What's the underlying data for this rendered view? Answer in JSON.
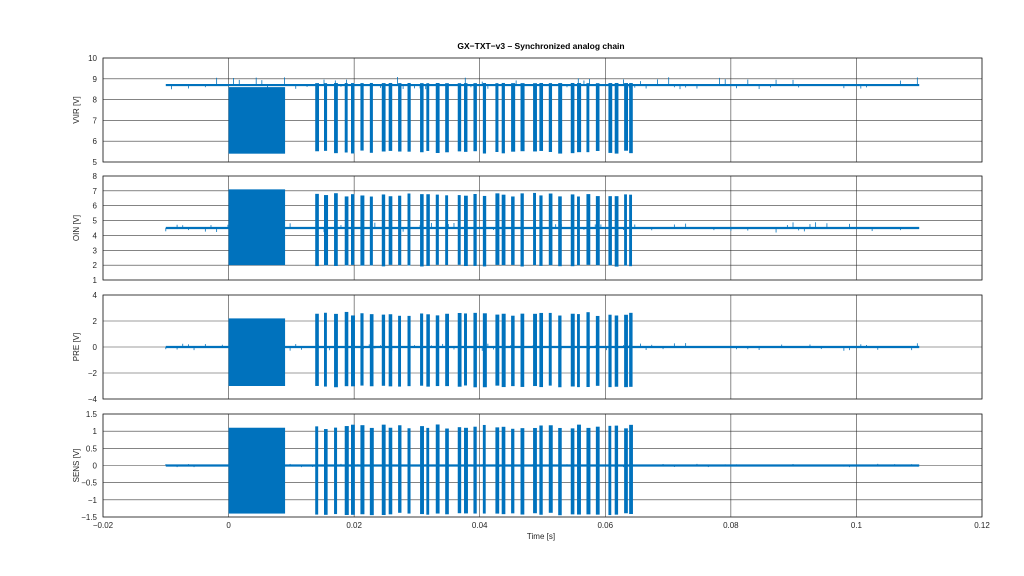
{
  "chart_data": {
    "type": "line",
    "title": "GX−TXT−v3 – Synchronized analog chain",
    "xlabel": "Time [s]",
    "xlim": [
      -0.02,
      0.12
    ],
    "xticks": [
      -0.02,
      0,
      0.02,
      0.04,
      0.06,
      0.08,
      0.1,
      0.12
    ],
    "xtick_labels": [
      "−0.02",
      "0",
      "0.02",
      "0.04",
      "0.06",
      "0.08",
      "0.1",
      "0.12"
    ],
    "grid": true,
    "color": "#0072bd",
    "signal_start": -0.01,
    "signal_end": 0.11,
    "dense_block": [
      0.0,
      0.009
    ],
    "burst_times": [
      0.0138,
      0.0152,
      0.0168,
      0.0185,
      0.0195,
      0.021,
      0.0225,
      0.0244,
      0.0255,
      0.027,
      0.0285,
      0.0305,
      0.0315,
      0.033,
      0.0345,
      0.0365,
      0.0375,
      0.039,
      0.0405,
      0.0425,
      0.0435,
      0.045,
      0.0465,
      0.0485,
      0.0495,
      0.051,
      0.0525,
      0.0545,
      0.0555,
      0.057,
      0.0585,
      0.0605,
      0.0615,
      0.063,
      0.0638
    ],
    "panels": [
      {
        "ylabel": "V\\IR [V]",
        "ylim": [
          5,
          10
        ],
        "yticks": [
          5,
          6,
          7,
          8,
          9,
          10
        ],
        "ytick_labels": [
          "5",
          "6",
          "7",
          "8",
          "9",
          "10"
        ],
        "baseline": 8.7,
        "block_low": 5.4,
        "block_high": 8.6,
        "burst_low": 5.4,
        "burst_high": 8.8,
        "spike_high": 9.1,
        "spike_low": 8.5
      },
      {
        "ylabel": "OIN [V]",
        "ylim": [
          1,
          8
        ],
        "yticks": [
          1,
          2,
          3,
          4,
          5,
          6,
          7,
          8
        ],
        "ytick_labels": [
          "1",
          "2",
          "3",
          "4",
          "5",
          "6",
          "7",
          "8"
        ],
        "baseline": 4.5,
        "block_low": 2.0,
        "block_high": 7.1,
        "burst_low": 1.9,
        "burst_high": 6.9,
        "spike_high": 4.9,
        "spike_low": 4.2
      },
      {
        "ylabel": "PRE [V]",
        "ylim": [
          -4,
          4
        ],
        "yticks": [
          -4,
          -2,
          0,
          2,
          4
        ],
        "ytick_labels": [
          "−4",
          "−2",
          "0",
          "2",
          "4"
        ],
        "baseline": 0.0,
        "block_low": -3.0,
        "block_high": 2.2,
        "burst_low": -3.1,
        "burst_high": 2.7,
        "spike_high": 0.3,
        "spike_low": -0.3
      },
      {
        "ylabel": "SENS [V]",
        "ylim": [
          -1.5,
          1.5
        ],
        "yticks": [
          -1.5,
          -1,
          -0.5,
          0,
          0.5,
          1,
          1.5
        ],
        "ytick_labels": [
          "−1.5",
          "−1",
          "−0.5",
          "0",
          "0.5",
          "1",
          "1.5"
        ],
        "baseline": 0.0,
        "block_low": -1.4,
        "block_high": 1.1,
        "burst_low": -1.45,
        "burst_high": 1.2,
        "spike_high": 0.05,
        "spike_low": -0.05
      }
    ]
  }
}
